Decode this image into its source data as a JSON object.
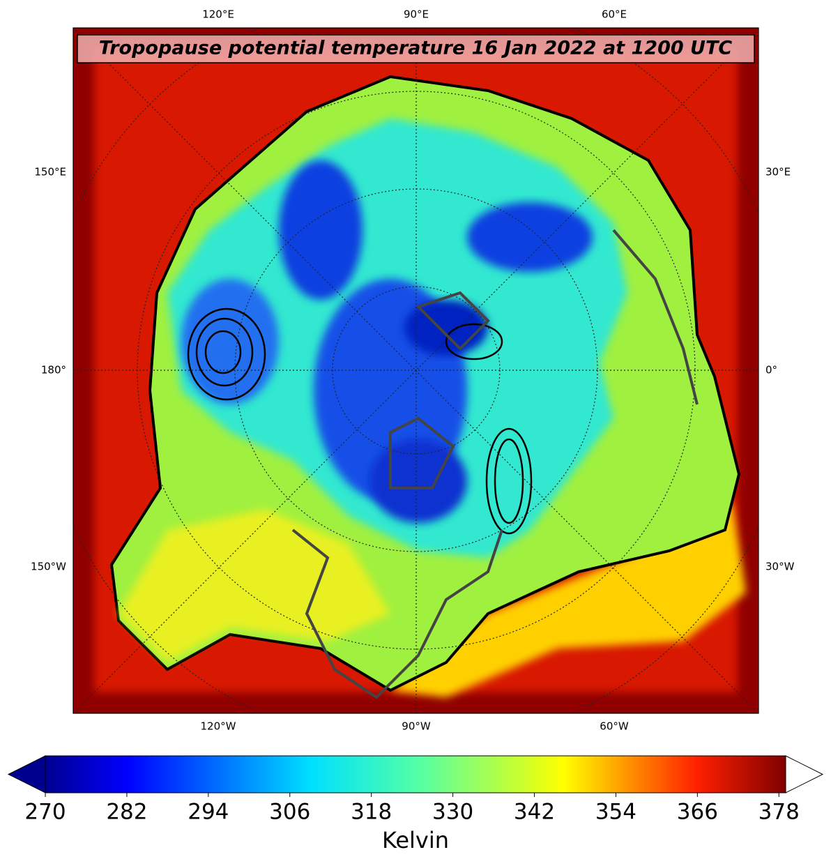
{
  "map": {
    "title": "Tropopause potential temperature 16 Jan 2022 at 1200 UTC",
    "lon_labels_top": [
      "120°E",
      "90°E",
      "60°E"
    ],
    "lon_labels_bottom": [
      "120°W",
      "90°W",
      "60°W"
    ],
    "lon_labels_left": [
      "150°E",
      "180°",
      "150°W"
    ],
    "lon_labels_right": [
      "30°E",
      "0°",
      "30°W"
    ]
  },
  "colorbar": {
    "label": "Kelvin",
    "ticks": [
      270,
      282,
      294,
      306,
      318,
      330,
      342,
      354,
      366,
      378
    ],
    "lim": [
      270,
      379
    ],
    "extend": "both"
  }
}
